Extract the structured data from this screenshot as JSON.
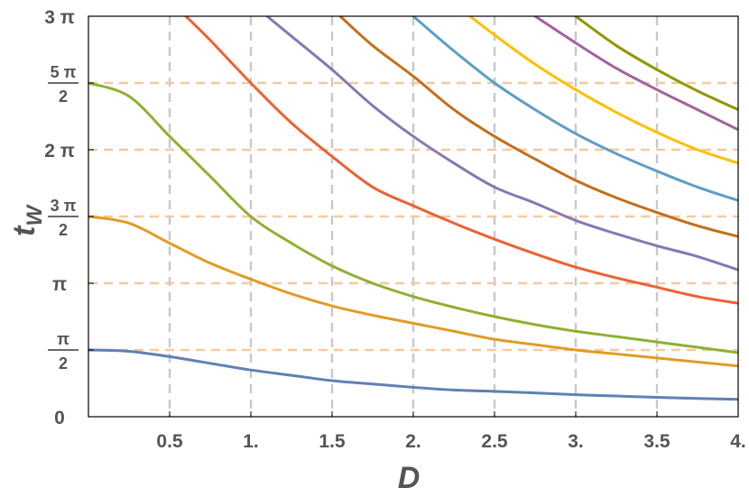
{
  "chart_data": {
    "type": "line",
    "xlabel": "D",
    "ylabel": "t",
    "ylabel_sub": "W",
    "xlim": [
      0,
      4
    ],
    "ylim_pi": [
      0,
      3
    ],
    "x_ticks": [
      {
        "value": 0.5,
        "label": "0.5"
      },
      {
        "value": 1,
        "label": "1."
      },
      {
        "value": 1.5,
        "label": "1.5"
      },
      {
        "value": 2,
        "label": "2."
      },
      {
        "value": 2.5,
        "label": "2.5"
      },
      {
        "value": 3,
        "label": "3."
      },
      {
        "value": 3.5,
        "label": "3.5"
      },
      {
        "value": 4,
        "label": "4."
      }
    ],
    "y_ticks": [
      {
        "value_pi": 0,
        "label": "0"
      },
      {
        "value_pi": 0.5,
        "num": "π",
        "den": "2"
      },
      {
        "value_pi": 1,
        "label": "π"
      },
      {
        "value_pi": 1.5,
        "num": "3 π",
        "den": "2"
      },
      {
        "value_pi": 2,
        "label": "2 π"
      },
      {
        "value_pi": 2.5,
        "num": "5 π",
        "den": "2"
      },
      {
        "value_pi": 3,
        "label": "3 π"
      }
    ],
    "vertical_gridlines": [
      0.5,
      1,
      1.5,
      2,
      2.5,
      3,
      3.5
    ],
    "horizontal_gridlines_pi": [
      0.5,
      1,
      1.5,
      2,
      2.5
    ],
    "y_values_in_units_of_pi": true,
    "series": [
      {
        "color": "#5e81b5",
        "x": [
          0,
          0.25,
          0.5,
          0.75,
          1,
          1.25,
          1.5,
          1.75,
          2,
          2.25,
          2.5,
          2.75,
          3,
          3.25,
          3.5,
          3.75,
          4
        ],
        "y": [
          0.5,
          0.49,
          0.45,
          0.4,
          0.35,
          0.31,
          0.27,
          0.245,
          0.22,
          0.2,
          0.19,
          0.178,
          0.165,
          0.155,
          0.145,
          0.137,
          0.13
        ]
      },
      {
        "color": "#e19c24",
        "x": [
          0,
          0.25,
          0.5,
          0.75,
          1,
          1.25,
          1.5,
          1.75,
          2,
          2.25,
          2.5,
          2.75,
          3,
          3.25,
          3.5,
          3.75,
          4
        ],
        "y": [
          1.5,
          1.45,
          1.3,
          1.15,
          1.03,
          0.92,
          0.83,
          0.76,
          0.7,
          0.64,
          0.58,
          0.54,
          0.5,
          0.47,
          0.44,
          0.41,
          0.38
        ]
      },
      {
        "color": "#8fb032",
        "x": [
          0,
          0.25,
          0.5,
          0.75,
          1,
          1.25,
          1.5,
          1.75,
          2,
          2.25,
          2.5,
          2.75,
          3,
          3.25,
          3.5,
          3.75,
          4
        ],
        "y": [
          2.5,
          2.4,
          2.1,
          1.8,
          1.5,
          1.3,
          1.13,
          1.0,
          0.9,
          0.82,
          0.75,
          0.69,
          0.64,
          0.6,
          0.56,
          0.52,
          0.48
        ]
      },
      {
        "color": "#eb6235",
        "x": [
          0.6,
          0.75,
          1,
          1.25,
          1.5,
          1.75,
          2,
          2.25,
          2.5,
          2.75,
          3,
          3.25,
          3.5,
          3.75,
          4
        ],
        "y": [
          3,
          2.82,
          2.5,
          2.2,
          1.95,
          1.72,
          1.58,
          1.45,
          1.33,
          1.22,
          1.12,
          1.04,
          0.97,
          0.9,
          0.85
        ]
      },
      {
        "color": "#8778b3",
        "x": [
          1.1,
          1.25,
          1.5,
          1.75,
          2,
          2.25,
          2.5,
          2.75,
          3,
          3.25,
          3.5,
          3.75,
          4
        ],
        "y": [
          3,
          2.85,
          2.6,
          2.33,
          2.1,
          1.9,
          1.72,
          1.6,
          1.47,
          1.37,
          1.28,
          1.2,
          1.1
        ]
      },
      {
        "color": "#c56e1a",
        "x": [
          1.55,
          1.75,
          2,
          2.25,
          2.5,
          2.75,
          3,
          3.25,
          3.5,
          3.75,
          4
        ],
        "y": [
          3,
          2.78,
          2.55,
          2.3,
          2.1,
          1.93,
          1.77,
          1.64,
          1.53,
          1.43,
          1.35
        ]
      },
      {
        "color": "#5d9ec7",
        "x": [
          2.0,
          2.25,
          2.5,
          2.75,
          3,
          3.25,
          3.5,
          3.75,
          4
        ],
        "y": [
          3,
          2.74,
          2.5,
          2.3,
          2.12,
          1.97,
          1.84,
          1.72,
          1.62
        ]
      },
      {
        "color": "#ffbf00",
        "x": [
          2.35,
          2.5,
          2.75,
          3,
          3.25,
          3.5,
          3.75,
          4
        ],
        "y": [
          3,
          2.86,
          2.64,
          2.45,
          2.28,
          2.13,
          2.0,
          1.9
        ]
      },
      {
        "color": "#a5609d",
        "x": [
          2.75,
          3,
          3.25,
          3.5,
          3.75,
          4
        ],
        "y": [
          3,
          2.8,
          2.61,
          2.45,
          2.3,
          2.15
        ]
      },
      {
        "color": "#929600",
        "x": [
          3.0,
          3.25,
          3.5,
          3.75,
          4
        ],
        "y": [
          3,
          2.78,
          2.6,
          2.44,
          2.3
        ]
      }
    ]
  }
}
